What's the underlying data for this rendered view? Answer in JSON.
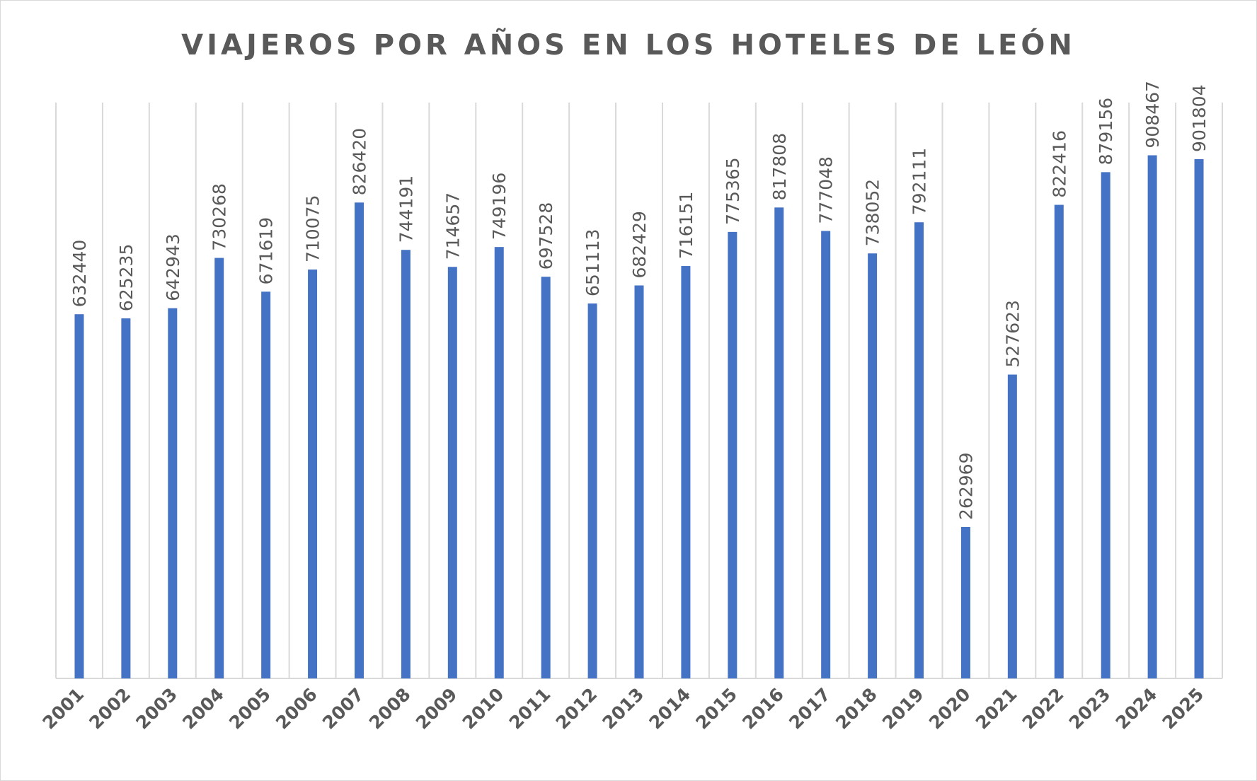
{
  "chart_data": {
    "type": "bar",
    "title": "VIAJEROS POR AÑOS EN LOS HOTELES DE LEÓN",
    "categories": [
      "2001",
      "2002",
      "2003",
      "2004",
      "2005",
      "2006",
      "2007",
      "2008",
      "2009",
      "2010",
      "2011",
      "2012",
      "2013",
      "2014",
      "2015",
      "2016",
      "2017",
      "2018",
      "2019",
      "2020",
      "2021",
      "2022",
      "2023",
      "2024",
      "2025"
    ],
    "values": [
      632440,
      625235,
      642943,
      730268,
      671619,
      710075,
      826420,
      744191,
      714657,
      749196,
      697528,
      651113,
      682429,
      716151,
      775365,
      817808,
      777048,
      738052,
      792111,
      262969,
      527623,
      822416,
      879156,
      908467,
      901804
    ],
    "color": "#4472c4",
    "ylim": [
      0,
      1000000
    ]
  }
}
